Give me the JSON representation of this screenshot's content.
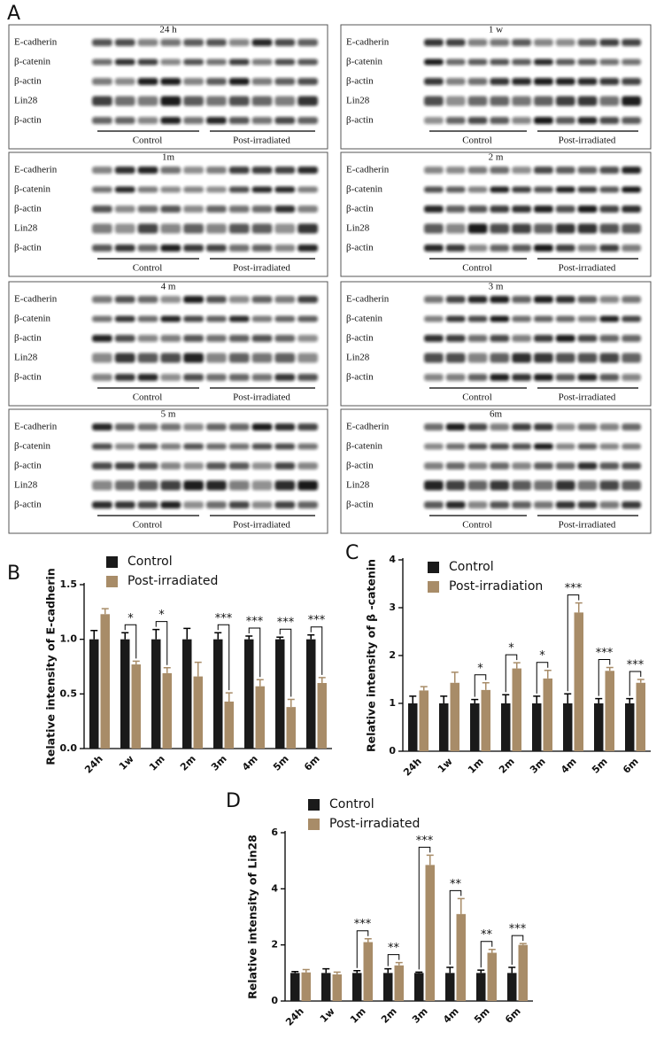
{
  "figure_label": "A",
  "blots": [
    {
      "title": "24 h",
      "rows": [
        "E-cadherin",
        "β-catenin",
        "β-actin",
        "Lin28",
        "β-actin"
      ],
      "groups": [
        "Control",
        "Post-irradiated"
      ]
    },
    {
      "title": "1 w",
      "rows": [
        "E-cadherin",
        "β-catenin",
        "β-actin",
        "Lin28",
        "β-actin"
      ],
      "groups": [
        "Control",
        "Post-irradiated"
      ]
    },
    {
      "title": "1m",
      "rows": [
        "E-cadherin",
        "β-catenin",
        "β-actin",
        "Lin28",
        "β-actin"
      ],
      "groups": [
        "Control",
        "Post-irradiated"
      ]
    },
    {
      "title": "2 m",
      "rows": [
        "E-cadherin",
        "β-catenin",
        "β-actin",
        "Lin28",
        "β-actin"
      ],
      "groups": [
        "Control",
        "Post-irradiated"
      ]
    },
    {
      "title": "4 m",
      "rows": [
        "E-cadherin",
        "β-catenin",
        "β-actin",
        "Lin28",
        "β-actin"
      ],
      "groups": [
        "Control",
        "Post-irradiated"
      ]
    },
    {
      "title": "3 m",
      "rows": [
        "E-cadherin",
        "β-catenin",
        "β-actin",
        "Lin28",
        "β-actin"
      ],
      "groups": [
        "Control",
        "Post-irradiated"
      ]
    },
    {
      "title": "5 m",
      "rows": [
        "E-cadherin",
        "β-catenin",
        "β-actin",
        "Lin28",
        "β-actin"
      ],
      "groups": [
        "Control",
        "Post-irradiated"
      ]
    },
    {
      "title": "6m",
      "rows": [
        "E-cadherin",
        "β-catenin",
        "β-actin",
        "Lin28",
        "β-actin"
      ],
      "groups": [
        "Control",
        "Post-irradiated"
      ]
    }
  ],
  "chart_data": [
    {
      "panel_label": "B",
      "type": "bar",
      "y_label": "Relative intensity of E-cadherin",
      "categories": [
        "24h",
        "1w",
        "1m",
        "2m",
        "3m",
        "4m",
        "5m",
        "6m"
      ],
      "series": [
        {
          "name": "Control",
          "color": "#1a1a1a",
          "values": [
            1,
            1,
            1,
            1,
            1,
            1,
            1,
            1
          ],
          "errors": [
            0.08,
            0.06,
            0.09,
            0.1,
            0.06,
            0.03,
            0.02,
            0.04
          ]
        },
        {
          "name": "Post-irradiated",
          "color": "#a88c68",
          "values": [
            1.23,
            0.77,
            0.69,
            0.66,
            0.43,
            0.57,
            0.38,
            0.6
          ],
          "errors": [
            0.05,
            0.03,
            0.05,
            0.13,
            0.08,
            0.06,
            0.07,
            0.05
          ]
        }
      ],
      "annotations": [
        null,
        "*",
        "*",
        null,
        "***",
        "***",
        "***",
        "***"
      ],
      "ylim": [
        0,
        1.5
      ],
      "yticks": [
        {
          "value": 0,
          "label": "0.0"
        },
        {
          "value": 0.5,
          "label": "0.5"
        },
        {
          "value": 1,
          "label": "1.0"
        },
        {
          "value": 1.5,
          "label": "1.5"
        }
      ]
    },
    {
      "panel_label": "C",
      "type": "bar",
      "y_label": "Relative intensity of β -catenin",
      "categories": [
        "24h",
        "1w",
        "1m",
        "2m",
        "3m",
        "4m",
        "5m",
        "6m"
      ],
      "series": [
        {
          "name": "Control",
          "color": "#1a1a1a",
          "values": [
            1,
            1,
            1,
            1,
            1,
            1,
            1,
            1
          ],
          "errors": [
            0.15,
            0.15,
            0.08,
            0.18,
            0.15,
            0.2,
            0.1,
            0.1
          ]
        },
        {
          "name": "Post-irradiation",
          "color": "#a88c68",
          "values": [
            1.27,
            1.43,
            1.28,
            1.73,
            1.52,
            2.9,
            1.68,
            1.43
          ],
          "errors": [
            0.08,
            0.22,
            0.15,
            0.12,
            0.17,
            0.2,
            0.07,
            0.07
          ]
        }
      ],
      "annotations": [
        null,
        null,
        "*",
        "*",
        "*",
        "***",
        "***",
        "***"
      ],
      "ylim": [
        0,
        4
      ],
      "yticks": [
        0,
        1,
        2,
        3,
        4
      ]
    },
    {
      "panel_label": "D",
      "type": "bar",
      "y_label": "Relative intensity of Lin28",
      "categories": [
        "24h",
        "1w",
        "1m",
        "2m",
        "3m",
        "4m",
        "5m",
        "6m"
      ],
      "series": [
        {
          "name": "Control",
          "color": "#1a1a1a",
          "values": [
            1,
            1,
            1,
            1,
            1,
            1,
            1,
            1
          ],
          "errors": [
            0.05,
            0.15,
            0.08,
            0.15,
            0.03,
            0.2,
            0.1,
            0.2
          ]
        },
        {
          "name": "Post-irradiated",
          "color": "#a88c68",
          "values": [
            1.02,
            0.95,
            2.1,
            1.27,
            4.85,
            3.1,
            1.72,
            2
          ],
          "errors": [
            0.1,
            0.08,
            0.12,
            0.1,
            0.35,
            0.55,
            0.12,
            0.05
          ]
        }
      ],
      "annotations": [
        null,
        null,
        "***",
        "**",
        "***",
        "**",
        "**",
        "***"
      ],
      "ylim": [
        0,
        6
      ],
      "yticks": [
        0,
        2,
        4,
        6
      ]
    }
  ]
}
